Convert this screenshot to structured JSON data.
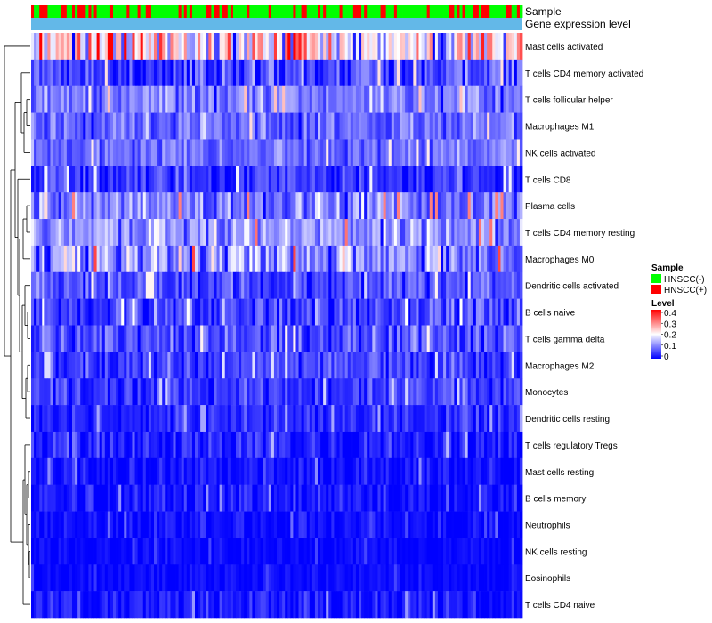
{
  "chart_data": {
    "type": "heatmap",
    "annotation_labels": {
      "sample": "Sample",
      "expression": "Gene expression level"
    },
    "rows": [
      {
        "label": "Mast cells activated",
        "mean": 0.21,
        "spread": 0.15
      },
      {
        "label": "T cells CD4 memory activated",
        "mean": 0.05,
        "spread": 0.07
      },
      {
        "label": "T cells follicular helper",
        "mean": 0.1,
        "spread": 0.06
      },
      {
        "label": "Macrophages M1",
        "mean": 0.08,
        "spread": 0.06
      },
      {
        "label": "NK cells activated",
        "mean": 0.09,
        "spread": 0.05
      },
      {
        "label": "T cells CD8",
        "mean": 0.04,
        "spread": 0.06
      },
      {
        "label": "Plasma cells",
        "mean": 0.1,
        "spread": 0.08
      },
      {
        "label": "T cells CD4 memory resting",
        "mean": 0.11,
        "spread": 0.08
      },
      {
        "label": "Macrophages M0",
        "mean": 0.12,
        "spread": 0.09
      },
      {
        "label": "Dendritic cells activated",
        "mean": 0.06,
        "spread": 0.06
      },
      {
        "label": "B cells naive",
        "mean": 0.05,
        "spread": 0.06
      },
      {
        "label": "T cells gamma delta",
        "mean": 0.06,
        "spread": 0.06
      },
      {
        "label": "Macrophages M2",
        "mean": 0.05,
        "spread": 0.05
      },
      {
        "label": "Monocytes",
        "mean": 0.04,
        "spread": 0.05
      },
      {
        "label": "Dendritic cells resting",
        "mean": 0.03,
        "spread": 0.04
      },
      {
        "label": "T cells regulatory  Tregs",
        "mean": 0.02,
        "spread": 0.05
      },
      {
        "label": "Mast cells resting",
        "mean": 0.01,
        "spread": 0.04
      },
      {
        "label": "B cells memory",
        "mean": 0.015,
        "spread": 0.04
      },
      {
        "label": "Neutrophils",
        "mean": 0.01,
        "spread": 0.03
      },
      {
        "label": "NK cells resting",
        "mean": 0.005,
        "spread": 0.02
      },
      {
        "label": "Eosinophils",
        "mean": 0.005,
        "spread": 0.02
      },
      {
        "label": "T cells CD4 naive",
        "mean": 0.02,
        "spread": 0.04
      }
    ],
    "n_samples": 180,
    "legend": {
      "sample": {
        "title": "Sample",
        "entries": [
          {
            "label": "HNSCC(-)",
            "color": "#00ff00"
          },
          {
            "label": "HNSCC(+)",
            "color": "#ff0000"
          }
        ]
      },
      "level": {
        "title": "Level",
        "range": [
          0,
          0.4
        ],
        "ticks": [
          {
            "value": 0.4,
            "label": "0.4"
          },
          {
            "value": 0.3,
            "label": "0.3"
          },
          {
            "value": 0.2,
            "label": "0.2"
          },
          {
            "value": 0.1,
            "label": "0.1"
          },
          {
            "value": 0,
            "label": "0"
          }
        ],
        "colors": [
          "#0000ff",
          "#ffffff",
          "#ff0000"
        ]
      }
    },
    "colors": {
      "expression_bar": "#63b8e8",
      "low": "#0000ff",
      "mid": "#ffffff",
      "high": "#ff0000"
    },
    "dendrogram": "hierarchical clustering of rows"
  }
}
